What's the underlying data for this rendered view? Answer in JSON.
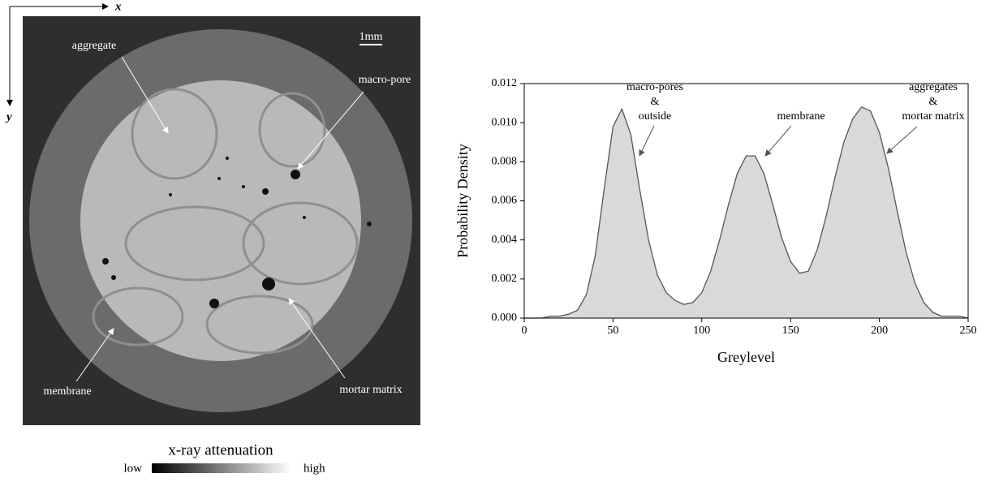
{
  "image_panel": {
    "axis_x": "x",
    "axis_y": "y",
    "scale_bar": "1mm",
    "labels": [
      "aggregate",
      "macro-pore",
      "membrane",
      "mortar matrix"
    ],
    "colorbar": {
      "title": "x-ray attenuation",
      "low": "low",
      "high": "high"
    }
  },
  "chart_data": {
    "type": "area",
    "xlabel": "Greylevel",
    "ylabel": "Probability Density",
    "x": [
      0,
      5,
      10,
      15,
      20,
      25,
      30,
      35,
      40,
      45,
      50,
      55,
      60,
      65,
      70,
      75,
      80,
      85,
      90,
      95,
      100,
      105,
      110,
      115,
      120,
      125,
      130,
      135,
      140,
      145,
      150,
      155,
      160,
      165,
      170,
      175,
      180,
      185,
      190,
      195,
      200,
      205,
      210,
      215,
      220,
      225,
      230,
      235,
      240,
      245,
      250
    ],
    "values": [
      0.0,
      0.0,
      0.0,
      0.0001,
      0.0001,
      0.0002,
      0.0004,
      0.0012,
      0.0032,
      0.0066,
      0.0098,
      0.0107,
      0.0094,
      0.0066,
      0.004,
      0.0022,
      0.0013,
      0.0009,
      0.0007,
      0.0008,
      0.0013,
      0.0024,
      0.004,
      0.0058,
      0.0074,
      0.0083,
      0.0083,
      0.0074,
      0.0058,
      0.0041,
      0.0029,
      0.0023,
      0.0024,
      0.0035,
      0.0052,
      0.0072,
      0.009,
      0.0102,
      0.0108,
      0.0106,
      0.0095,
      0.0077,
      0.0055,
      0.0034,
      0.0018,
      0.0008,
      0.0003,
      0.0001,
      0.0001,
      0.0001,
      0.0
    ],
    "color": "#d9d9d9",
    "line_color": "#555555",
    "xlim": [
      0,
      250
    ],
    "xticks": [
      0,
      50,
      100,
      150,
      200,
      250
    ],
    "ylim": [
      0,
      0.012
    ],
    "yticks": [
      {
        "value": 0,
        "label": "0.000"
      },
      0.002,
      0.004,
      0.006,
      0.008,
      {
        "value": 0.01,
        "label": "0.010"
      },
      0.012
    ],
    "annotations": [
      {
        "lines": [
          "macro-pores",
          "&",
          "outside"
        ]
      },
      {
        "lines": [
          "membrane"
        ]
      },
      {
        "lines": [
          "aggregates",
          "&",
          "mortar matrix"
        ]
      }
    ]
  }
}
